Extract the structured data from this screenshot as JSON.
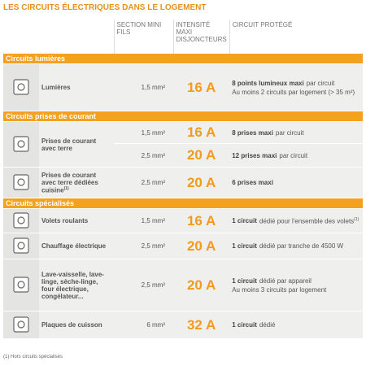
{
  "title": "LES CIRCUITS ÉLECTRIQUES DANS LE LOGEMENT",
  "headers": [
    "SECTION MINI FILS",
    "INTENSITÉ MAXI DISJONCTEURS",
    "CIRCUIT PROTÉGÉ"
  ],
  "sections": [
    {
      "title": "Circuits lumières",
      "rows": [
        {
          "label": "Lumières",
          "lines": [
            {
              "section": "1,5 mm²",
              "intensity": "16 A",
              "protected": [
                {
                  "bold": "8 points lumineux maxi",
                  "text": "par circuit"
                },
                {
                  "text": "Au moins 2 circuits par logement (> 35 m²)"
                }
              ]
            }
          ]
        }
      ]
    },
    {
      "title": "Circuits prises de courant",
      "rows": [
        {
          "label": "Prises de courant avec terre",
          "lines": [
            {
              "section": "1,5 mm²",
              "intensity": "16 A",
              "protected": [
                {
                  "bold": "8 prises maxi",
                  "text": "par circuit"
                }
              ]
            },
            {
              "section": "2,5 mm²",
              "intensity": "20 A",
              "protected": [
                {
                  "bold": "12 prises maxi",
                  "text": "par circuit"
                }
              ]
            }
          ]
        },
        {
          "label": "Prises de courant avec terre dédiées cuisine",
          "note": "(1)",
          "lines": [
            {
              "section": "2,5 mm²",
              "intensity": "20 A",
              "protected": [
                {
                  "bold": "6 prises maxi"
                }
              ]
            }
          ]
        }
      ]
    },
    {
      "title": "Circuits spécialisés",
      "rows": [
        {
          "label": "Volets roulants",
          "lines": [
            {
              "section": "1,5 mm²",
              "intensity": "16 A",
              "protected": [
                {
                  "bold": "1 circuit",
                  "text": "dédié pour l'ensemble des volets",
                  "note": "(1)"
                }
              ]
            }
          ]
        },
        {
          "label": "Chauffage électrique",
          "lines": [
            {
              "section": "2,5 mm²",
              "intensity": "20 A",
              "protected": [
                {
                  "bold": "1 circuit",
                  "text": "dédié par tranche de 4500 W"
                }
              ]
            }
          ]
        },
        {
          "label": "Lave-vaisselle, lave-linge, sèche-linge, four électrique, congélateur...",
          "lines": [
            {
              "section": "2,5 mm²",
              "intensity": "20 A",
              "protected": [
                {
                  "bold": "1 circuit",
                  "text": "dédié par appareil"
                },
                {
                  "text": "Au moins 3 circuits par logement"
                }
              ]
            }
          ]
        },
        {
          "label": "Plaques de cuisson",
          "lines": [
            {
              "section": "6 mm²",
              "intensity": "32 A",
              "protected": [
                {
                  "bold": "1 circuit",
                  "text": "dédié"
                }
              ]
            }
          ]
        }
      ]
    }
  ],
  "footnote": "(1) Hors circuits spécialisés"
}
